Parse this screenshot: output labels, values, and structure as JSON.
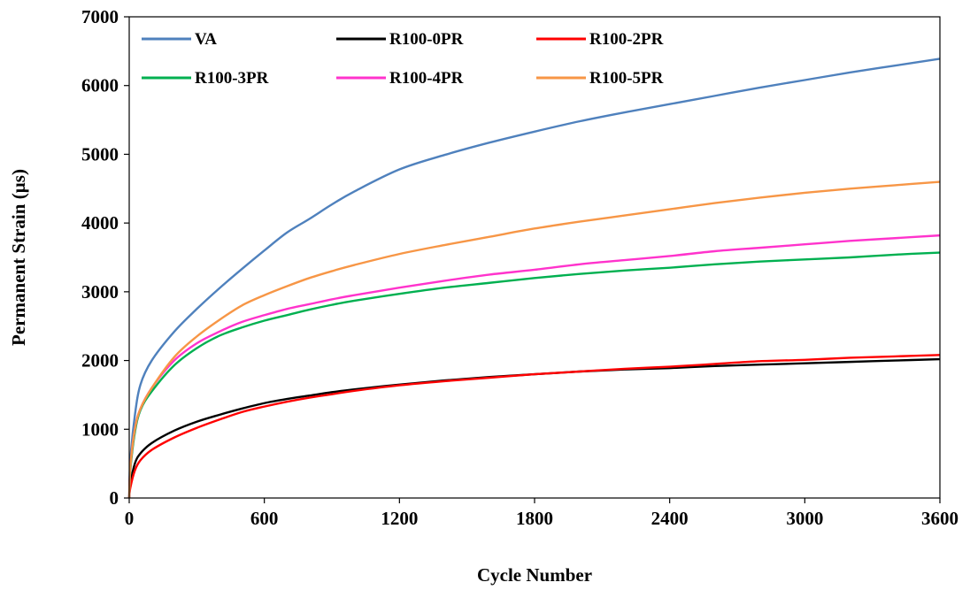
{
  "chart_data": {
    "type": "line",
    "title": "",
    "xlabel": "Cycle Number",
    "ylabel": "Permanent Strain (µs)",
    "xlim": [
      0,
      3600
    ],
    "ylim": [
      0,
      7000
    ],
    "xticks": [
      0,
      600,
      1200,
      1800,
      2400,
      3000,
      3600
    ],
    "yticks": [
      0,
      1000,
      2000,
      3000,
      4000,
      5000,
      6000,
      7000
    ],
    "grid": false,
    "legend_placement": "top",
    "x": [
      0,
      5,
      25,
      50,
      100,
      200,
      300,
      400,
      500,
      600,
      700,
      800,
      900,
      1000,
      1200,
      1400,
      1600,
      1800,
      2000,
      2200,
      2400,
      2600,
      2800,
      3000,
      3200,
      3400,
      3600
    ],
    "series": [
      {
        "name": "VA",
        "color": "#4f81bd",
        "values": [
          0,
          550,
          1200,
          1650,
          2000,
          2420,
          2750,
          3050,
          3330,
          3600,
          3860,
          4060,
          4270,
          4460,
          4780,
          4990,
          5170,
          5330,
          5480,
          5610,
          5730,
          5850,
          5970,
          6080,
          6190,
          6290,
          6390
        ]
      },
      {
        "name": "R100-0PR",
        "color": "#000000",
        "values": [
          0,
          200,
          500,
          650,
          800,
          980,
          1110,
          1210,
          1300,
          1380,
          1440,
          1490,
          1540,
          1580,
          1650,
          1710,
          1760,
          1800,
          1840,
          1870,
          1890,
          1920,
          1940,
          1960,
          1980,
          2000,
          2020
        ]
      },
      {
        "name": "R100-2PR",
        "color": "#ff0000",
        "values": [
          0,
          150,
          400,
          550,
          700,
          880,
          1020,
          1140,
          1250,
          1330,
          1400,
          1460,
          1510,
          1560,
          1640,
          1700,
          1750,
          1800,
          1840,
          1880,
          1910,
          1950,
          1990,
          2010,
          2040,
          2060,
          2080
        ]
      },
      {
        "name": "R100-3PR",
        "color": "#00b050",
        "values": [
          0,
          400,
          950,
          1280,
          1550,
          1930,
          2180,
          2360,
          2480,
          2580,
          2660,
          2740,
          2810,
          2870,
          2970,
          3060,
          3130,
          3200,
          3260,
          3310,
          3350,
          3400,
          3440,
          3470,
          3500,
          3540,
          3570
        ]
      },
      {
        "name": "R100-4PR",
        "color": "#ff33cc",
        "values": [
          0,
          450,
          1000,
          1300,
          1600,
          2000,
          2250,
          2420,
          2560,
          2660,
          2750,
          2820,
          2890,
          2950,
          3060,
          3160,
          3250,
          3320,
          3400,
          3460,
          3520,
          3590,
          3640,
          3690,
          3740,
          3780,
          3820
        ]
      },
      {
        "name": "R100-5PR",
        "color": "#f79646",
        "values": [
          0,
          450,
          1000,
          1300,
          1600,
          2050,
          2350,
          2590,
          2800,
          2950,
          3080,
          3200,
          3300,
          3390,
          3550,
          3680,
          3800,
          3920,
          4020,
          4110,
          4200,
          4290,
          4370,
          4440,
          4500,
          4550,
          4600
        ]
      }
    ]
  }
}
